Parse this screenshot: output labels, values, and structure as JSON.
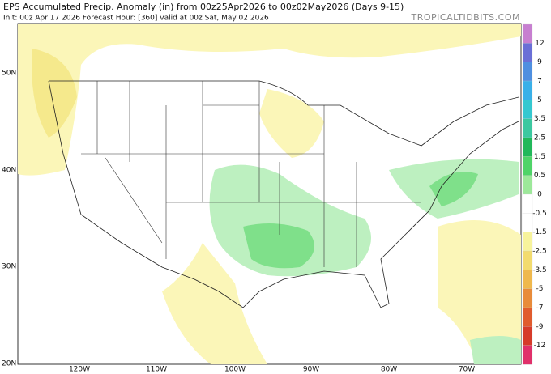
{
  "header": {
    "title": "EPS Accumulated Precip. Anomaly (in) from 00z25Apr2026 to 00z02May2026 (Days 9-15)",
    "subtitle": "Init: 00z Apr 17 2026   Forecast Hour: [360]   valid at 00z Sat, May 02 2026",
    "brand": "TROPICALTIDBITS.COM"
  },
  "latitude_labels": [
    "50N",
    "40N",
    "30N",
    "20N"
  ],
  "longitude_labels": [
    "120W",
    "110W",
    "100W",
    "90W",
    "80W",
    "70W"
  ],
  "colorbar": {
    "labels": [
      "12",
      "9",
      "7",
      "5",
      "3.5",
      "2.5",
      "1.5",
      "0.5",
      "0",
      "-0.5",
      "-1.5",
      "-2.5",
      "-3.5",
      "-5",
      "-7",
      "-9",
      "-12"
    ],
    "colors": [
      "#c77fd0",
      "#6a6fd6",
      "#4f8fe0",
      "#3ab0e8",
      "#35c8d0",
      "#3cc8a0",
      "#22b85a",
      "#4fd468",
      "#9de89a",
      "#ffffff",
      "#ffffff",
      "#f7f39c",
      "#f2db6e",
      "#efb84d",
      "#e88b3a",
      "#e05c2e",
      "#d63b2a",
      "#e0306a"
    ]
  }
}
